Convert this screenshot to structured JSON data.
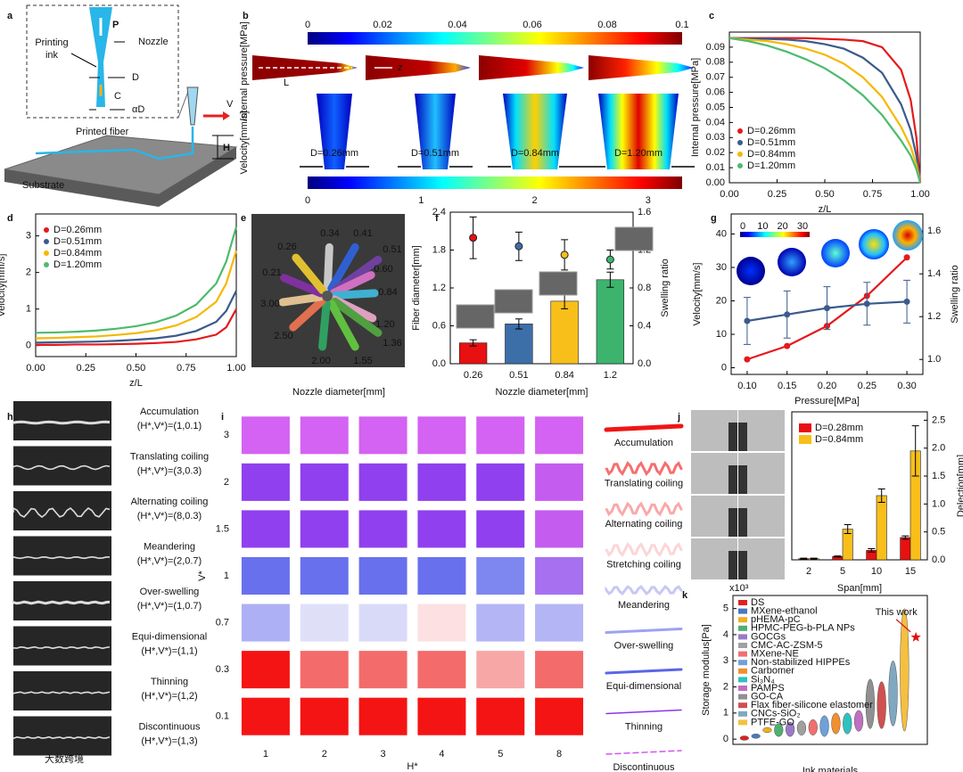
{
  "panel_labels": [
    "a",
    "b",
    "c",
    "d",
    "e",
    "f",
    "g",
    "h",
    "i",
    "j",
    "k"
  ],
  "schematic": {
    "p": "P",
    "nozzle": "Nozzle",
    "ink_lines": [
      "Printing",
      "ink"
    ],
    "d": "D",
    "c": "C",
    "ad": "αD",
    "v": "V",
    "fiber": "Printed fiber",
    "h": "H",
    "substrate": "Substrate"
  },
  "simulation": {
    "pressure_label": "Internal pressure[MPa]",
    "pressure_lim": [
      0,
      0.1
    ],
    "pressure_ticks": [
      0,
      0.02,
      0.04,
      0.06,
      0.08,
      0.1
    ],
    "l": "L",
    "z": "z",
    "velocity_label": "Velocity[mm/s]",
    "velocity_lim": [
      0,
      3.3
    ],
    "velocity_ticks": [
      0,
      1,
      2,
      3
    ],
    "diameters": [
      "D=0.26mm",
      "D=0.51mm",
      "D=0.84mm",
      "D=1.20mm"
    ]
  },
  "nozzles": {
    "sizes": [
      "0.34",
      "0.41",
      "0.51",
      "0.60",
      "0.84",
      "1.20",
      "1.36",
      "1.55",
      "2.00",
      "2.50",
      "3.00",
      "0.21",
      "0.26"
    ],
    "xlabel": "Nozzle diameter[mm]"
  },
  "fiber_modes": [
    {
      "name": "Accumulation",
      "params": "(H*,V*)=(1,0.1)"
    },
    {
      "name": "Translating coiling",
      "params": "(H*,V*)=(3,0.3)"
    },
    {
      "name": "Alternating coiling",
      "params": "(H*,V*)=(8,0.3)"
    },
    {
      "name": "Meandering",
      "params": "(H*,V*)=(2,0.7)"
    },
    {
      "name": "Over-swelling",
      "params": "(H*,V*)=(1,0.7)"
    },
    {
      "name": "Equi-dimensional",
      "params": "(H*,V*)=(1,1)"
    },
    {
      "name": "Thinning",
      "params": "(H*,V*)=(1,2)"
    },
    {
      "name": "Discontinuous",
      "params": "(H*,V*)=(1,3)"
    }
  ],
  "watermark": "大数跨境",
  "chart_data": [
    {
      "type": "line",
      "xlabel": "z/L",
      "ylabel": "Internal pressure[MPa]",
      "x": [
        0,
        0.1,
        0.2,
        0.3,
        0.4,
        0.5,
        0.6,
        0.7,
        0.8,
        0.9,
        0.95,
        0.98,
        1
      ],
      "series": [
        {
          "name": "D=0.26mm",
          "color": "#e41a1c",
          "values": [
            0.096,
            0.096,
            0.096,
            0.096,
            0.096,
            0.0955,
            0.095,
            0.094,
            0.09,
            0.075,
            0.055,
            0.03,
            0
          ]
        },
        {
          "name": "D=0.51mm",
          "color": "#3b5b8c",
          "values": [
            0.096,
            0.0958,
            0.0955,
            0.095,
            0.094,
            0.092,
            0.089,
            0.083,
            0.073,
            0.052,
            0.035,
            0.018,
            0
          ]
        },
        {
          "name": "D=0.84mm",
          "color": "#f5b800",
          "values": [
            0.096,
            0.095,
            0.094,
            0.092,
            0.089,
            0.085,
            0.079,
            0.07,
            0.057,
            0.037,
            0.024,
            0.012,
            0
          ]
        },
        {
          "name": "D=1.20mm",
          "color": "#4cbb6c",
          "values": [
            0.096,
            0.094,
            0.091,
            0.087,
            0.082,
            0.076,
            0.068,
            0.058,
            0.045,
            0.028,
            0.018,
            0.009,
            0
          ]
        }
      ],
      "xlim": [
        0,
        1
      ],
      "xticks": [
        {
          "value": 0,
          "label": "0.00"
        },
        0.25,
        {
          "value": 0.5,
          "label": "0.50"
        },
        0.75,
        {
          "value": 1,
          "label": "1.00"
        }
      ],
      "ylim": [
        0,
        0.1
      ],
      "yticks": [
        {
          "value": 0,
          "label": "0.00"
        },
        0.01,
        0.02,
        0.03,
        0.04,
        0.05,
        0.06,
        0.07,
        0.08,
        0.09
      ],
      "legend": "lower left",
      "markers": false
    },
    {
      "type": "line",
      "xlabel": "z/L",
      "ylabel": "Velocity[mm/s]",
      "x": [
        0,
        0.1,
        0.2,
        0.3,
        0.4,
        0.5,
        0.6,
        0.7,
        0.8,
        0.9,
        0.95,
        1
      ],
      "series": [
        {
          "name": "D=0.26mm",
          "color": "#e41a1c",
          "values": [
            0.02,
            0.02,
            0.03,
            0.03,
            0.04,
            0.05,
            0.07,
            0.1,
            0.17,
            0.3,
            0.5,
            1.0
          ]
        },
        {
          "name": "D=0.51mm",
          "color": "#3b5b8c",
          "values": [
            0.08,
            0.09,
            0.1,
            0.11,
            0.13,
            0.16,
            0.2,
            0.27,
            0.4,
            0.65,
            0.95,
            1.5
          ]
        },
        {
          "name": "D=0.84mm",
          "color": "#f5b800",
          "values": [
            0.2,
            0.21,
            0.23,
            0.25,
            0.29,
            0.34,
            0.42,
            0.55,
            0.78,
            1.2,
            1.7,
            2.6
          ]
        },
        {
          "name": "D=1.20mm",
          "color": "#4cbb6c",
          "values": [
            0.35,
            0.36,
            0.38,
            0.41,
            0.46,
            0.53,
            0.64,
            0.82,
            1.12,
            1.7,
            2.3,
            3.25
          ]
        }
      ],
      "xlim": [
        0,
        1
      ],
      "xticks": [
        {
          "value": 0,
          "label": "0.00"
        },
        0.25,
        {
          "value": 0.5,
          "label": "0.50"
        },
        0.75,
        {
          "value": 1,
          "label": "1.00"
        }
      ],
      "ylim": [
        -0.3,
        3.6
      ],
      "yticks": [
        0,
        1,
        2,
        3
      ],
      "legend": "upper left",
      "markers": false
    },
    {
      "type": "bar",
      "xlabel": "Nozzle diameter[mm]",
      "ylabel": "Fiber diameter[mm]",
      "y2label": "Swelling ratio",
      "categories": [
        "0.26",
        "0.51",
        "0.84",
        "1.2"
      ],
      "colors": [
        "#e81010",
        "#3c6ea8",
        "#f8bf1a",
        "#3cb46e"
      ],
      "series": [
        {
          "values": [
            0.33,
            0.63,
            0.99,
            1.33
          ],
          "errors": [
            0.05,
            0.08,
            0.12,
            0.12
          ]
        },
        {
          "axis": "y2",
          "values": [
            1.33,
            1.24,
            1.15,
            1.1
          ],
          "errors": [
            0.22,
            0.15,
            0.16,
            0.1
          ]
        }
      ],
      "ylim": [
        0,
        2.4
      ],
      "yticks": [
        {
          "value": 0,
          "label": "0.0"
        },
        0.6,
        1.2,
        1.8,
        2.4
      ],
      "y2lim": [
        0,
        1.6
      ],
      "y2ticks": [
        {
          "value": 0,
          "label": "0.0"
        },
        0.4,
        0.8,
        1.2,
        1.6
      ]
    },
    {
      "type": "line",
      "xlabel": "Pressure[MPa]",
      "ylabel": "Velocity[mm/s]",
      "y2label": "Swelling ratio",
      "x": [
        0.1,
        0.15,
        0.2,
        0.25,
        0.3
      ],
      "series": [
        {
          "color": "#e41a1c",
          "values": [
            2.5,
            6.5,
            12.5,
            21.5,
            33
          ]
        },
        {
          "axis": "y2",
          "color": "#3b5b8c",
          "values": [
            1.18,
            1.21,
            1.24,
            1.26,
            1.27
          ],
          "errors": [
            0.11,
            0.11,
            0.1,
            0.1,
            0.1
          ]
        }
      ],
      "xlim": [
        0.08,
        0.32
      ],
      "xticks": [
        {
          "value": 0.1,
          "label": "0.10"
        },
        0.15,
        {
          "value": 0.2,
          "label": "0.20"
        },
        0.25,
        {
          "value": 0.3,
          "label": "0.30"
        }
      ],
      "ylim": [
        -2,
        46
      ],
      "yticks": [
        0,
        10,
        20,
        30,
        40
      ],
      "y2lim": [
        0.93,
        1.68
      ],
      "y2ticks": [
        {
          "value": 1,
          "label": "1.0"
        },
        1.2,
        1.4,
        1.6
      ],
      "inset_ticks": [
        0,
        10,
        20,
        30
      ],
      "markers": true
    },
    {
      "type": "heatmap",
      "xlabel": "H*",
      "ylabel": "V*",
      "x": [
        "1",
        "2",
        "3",
        "4",
        "5",
        "8"
      ],
      "y": [
        "3",
        "2",
        "1.5",
        "1",
        "0.7",
        "0.3",
        "0.1"
      ],
      "cells": [
        [
          "#d462f2",
          "#d462f2",
          "#d462f2",
          "#d462f2",
          "#d462f2",
          "#d462f2"
        ],
        [
          "#9040ee",
          "#9040ee",
          "#9040ee",
          "#9040ee",
          "#9040ee",
          "#c55cf0"
        ],
        [
          "#9040ee",
          "#9040ee",
          "#9040ee",
          "#9040ee",
          "#9040ee",
          "#c55cf0"
        ],
        [
          "#6870ee",
          "#6870ee",
          "#6870ee",
          "#6870ee",
          "#7e86f0",
          "#a670f0"
        ],
        [
          "#aeb0f5",
          "#dfe0f8",
          "#d9d9f8",
          "#fde0e2",
          "#b3b5f5",
          "#b3b5f5"
        ],
        [
          "#f41414",
          "#f46b6b",
          "#f46b6b",
          "#f46b6b",
          "#f8a7a7",
          "#f46b6b"
        ],
        [
          "#f41414",
          "#f41414",
          "#f41414",
          "#f41414",
          "#f41414",
          "#f41414"
        ]
      ],
      "modes": [
        {
          "name": "Accumulation",
          "color": "#f01515"
        },
        {
          "name": "Translating coiling",
          "color": "#f56f6f"
        },
        {
          "name": "Alternating coiling",
          "color": "#f9a9a9"
        },
        {
          "name": "Stretching coiling",
          "color": "#fbd6d6"
        },
        {
          "name": "Meandering",
          "color": "#c8c8f5"
        },
        {
          "name": "Over-swelling",
          "color": "#9ea2f2"
        },
        {
          "name": "Equi-dimensional",
          "color": "#5a66e8"
        },
        {
          "name": "Thinning",
          "color": "#8a36e8"
        },
        {
          "name": "Discontinuous",
          "color": "#d255ee"
        }
      ]
    },
    {
      "type": "bar",
      "xlabel": "Span[mm]",
      "ylabel": "Delection[mm]",
      "yaxis": "right",
      "categories": [
        "2",
        "5",
        "10",
        "15"
      ],
      "series": [
        {
          "name": "D=0.28mm",
          "color": "#e81010",
          "values": [
            0.02,
            0.06,
            0.17,
            0.4
          ],
          "errors": [
            0.01,
            0.01,
            0.03,
            0.03
          ]
        },
        {
          "name": "D=0.84mm",
          "color": "#f8bf1a",
          "values": [
            0.02,
            0.55,
            1.15,
            1.95
          ],
          "errors": [
            0.01,
            0.08,
            0.12,
            0.45
          ]
        }
      ],
      "ylim": [
        0,
        2.65
      ],
      "yticks": [
        {
          "value": 0,
          "label": "0.0"
        },
        0.5,
        {
          "value": 1,
          "label": "1.0"
        },
        1.5,
        {
          "value": 2,
          "label": "2.0"
        },
        2.5
      ],
      "legend": "upper left"
    },
    {
      "type": "range",
      "xlabel": "Ink materials",
      "ylabel": "Storage modulus[Pa]",
      "multiplier": "x10³",
      "materials": [
        {
          "name": "DS",
          "color": "#e02020",
          "range": [
            0.01,
            0.07
          ]
        },
        {
          "name": "MXene-ethanol",
          "color": "#4a78c0",
          "range": [
            0.03,
            0.2
          ]
        },
        {
          "name": "pHEMA-pC",
          "color": "#f0b020",
          "range": [
            0.25,
            0.45
          ]
        },
        {
          "name": "HPMC-PEG-b-PLA NPs",
          "color": "#50b070",
          "range": [
            0.1,
            0.6
          ]
        },
        {
          "name": "GOCGs",
          "color": "#9a7ac8",
          "range": [
            0.1,
            0.65
          ]
        },
        {
          "name": "CMC-AC-ZSM-5",
          "color": "#a0a0a0",
          "range": [
            0.15,
            0.7
          ]
        },
        {
          "name": "MXene-NE",
          "color": "#f07070",
          "range": [
            0.15,
            0.75
          ]
        },
        {
          "name": "Non-stabilized HIPPEs",
          "color": "#70a0d8",
          "range": [
            0.1,
            0.9
          ]
        },
        {
          "name": "Carbomer",
          "color": "#f09030",
          "range": [
            0.2,
            1.0
          ]
        },
        {
          "name": "Si₃N₄",
          "color": "#30c0c0",
          "range": [
            0.2,
            1.0
          ]
        },
        {
          "name": "PAMPS",
          "color": "#c070c0",
          "range": [
            0.3,
            1.1
          ]
        },
        {
          "name": "GO-CA",
          "color": "#909090",
          "range": [
            0.4,
            2.3
          ]
        },
        {
          "name": "Flax fiber-silicone elastomer",
          "color": "#d05050",
          "range": [
            0.4,
            2.2
          ]
        },
        {
          "name": "CNCs-SiO₂",
          "color": "#80a8c0",
          "range": [
            0.5,
            3.0
          ]
        },
        {
          "name": "PTFE-GO",
          "color": "#f4c040",
          "range": [
            0.3,
            5.0
          ]
        }
      ],
      "this_work": {
        "label": "This work",
        "value": 3.9,
        "color": "#e01010"
      },
      "ylim": [
        -0.2,
        5.5
      ],
      "yticks": [
        0,
        1,
        2,
        3,
        4,
        5
      ],
      "legend": "upper left"
    }
  ]
}
